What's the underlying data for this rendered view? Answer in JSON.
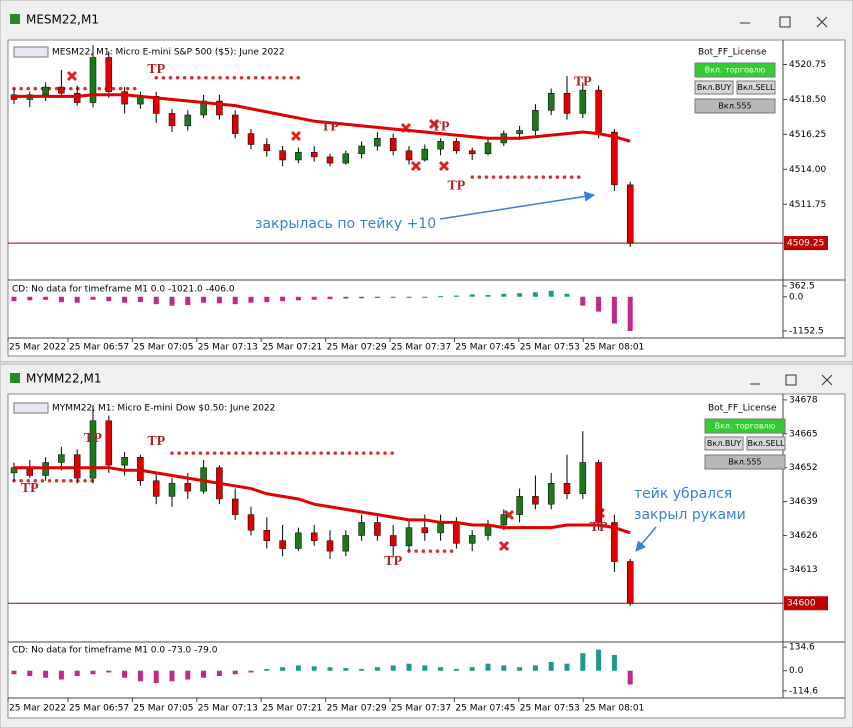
{
  "windows": [
    {
      "title": "MESM22,M1",
      "header": "MESM22, M1:  Micro E-mini S&P 500 ($5): June 2022",
      "license": "Bot_FF_License",
      "buttons": [
        "Вкл. торговлю",
        "Вкл.BUY",
        "Вкл.SELL",
        "Вкл.555"
      ],
      "annotation": [
        "закрылась по тейку +10"
      ]
    },
    {
      "title": "MYMM22,M1",
      "header": "MYMM22, M1:  Micro E-mini Dow $0.50: June 2022",
      "license": "Bot_FF_License",
      "buttons": [
        "Вкл. торговлю",
        "Вкл.BUY",
        "Вкл.SELL",
        "Вкл.555"
      ],
      "annotation": [
        "тейк убрался",
        "закрыл руками"
      ]
    }
  ],
  "chart_data": [
    {
      "type": "candlestick",
      "up_color": "#1a7a1a",
      "down_color": "#e00000",
      "ma_color": "#e00000",
      "level_color": "#d83030",
      "ylim": [
        4507.0,
        4522.2
      ],
      "yticks": [
        4520.75,
        {
          "value": 4518.5,
          "label": "4518.50"
        },
        4516.25,
        {
          "value": 4514.0,
          "label": "4514.00"
        },
        4511.75
      ],
      "last_price": 4509.25,
      "candles": [
        [
          4518.8,
          4519.2,
          4518.2,
          4518.5
        ],
        [
          4518.5,
          4519.0,
          4518.0,
          4518.8
        ],
        [
          4518.8,
          4519.6,
          4518.4,
          4519.3
        ],
        [
          4519.3,
          4520.4,
          4518.6,
          4518.9
        ],
        [
          4518.9,
          4519.4,
          4518.1,
          4518.3
        ],
        [
          4518.3,
          4522.0,
          4518.0,
          4521.2
        ],
        [
          4521.2,
          4521.6,
          4518.6,
          4519.0
        ],
        [
          4519.0,
          4519.3,
          4517.6,
          4518.2
        ],
        [
          4518.2,
          4519.0,
          4517.9,
          4518.7
        ],
        [
          4518.7,
          4519.0,
          4517.0,
          4517.6
        ],
        [
          4517.6,
          4517.9,
          4516.4,
          4516.8
        ],
        [
          4516.8,
          4517.8,
          4516.5,
          4517.5
        ],
        [
          4517.5,
          4518.8,
          4517.3,
          4518.4
        ],
        [
          4518.4,
          4518.8,
          4517.2,
          4517.5
        ],
        [
          4517.5,
          4517.8,
          4516.0,
          4516.3
        ],
        [
          4516.3,
          4516.6,
          4515.3,
          4515.6
        ],
        [
          4515.6,
          4516.0,
          4514.8,
          4515.2
        ],
        [
          4515.2,
          4515.5,
          4514.2,
          4514.6
        ],
        [
          4514.6,
          4515.4,
          4514.4,
          4515.1
        ],
        [
          4515.1,
          4515.5,
          4514.5,
          4514.8
        ],
        [
          4514.8,
          4515.0,
          4514.2,
          4514.4
        ],
        [
          4514.4,
          4515.2,
          4514.3,
          4515.0
        ],
        [
          4515.0,
          4515.8,
          4514.7,
          4515.5
        ],
        [
          4515.5,
          4516.4,
          4515.2,
          4516.0
        ],
        [
          4516.0,
          4516.3,
          4514.9,
          4515.2
        ],
        [
          4515.2,
          4515.5,
          4514.3,
          4514.6
        ],
        [
          4514.6,
          4515.6,
          4514.5,
          4515.3
        ],
        [
          4515.3,
          4516.0,
          4514.9,
          4515.8
        ],
        [
          4515.8,
          4516.0,
          4515.0,
          4515.2
        ],
        [
          4515.2,
          4515.4,
          4514.6,
          4515.0
        ],
        [
          4515.0,
          4516.0,
          4514.9,
          4515.7
        ],
        [
          4515.7,
          4516.5,
          4515.5,
          4516.3
        ],
        [
          4516.3,
          4516.8,
          4515.9,
          4516.5
        ],
        [
          4516.5,
          4518.2,
          4516.2,
          4517.8
        ],
        [
          4517.8,
          4519.2,
          4517.5,
          4518.9
        ],
        [
          4518.9,
          4520.0,
          4517.2,
          4517.6
        ],
        [
          4517.6,
          4519.6,
          4517.3,
          4519.1
        ],
        [
          4519.1,
          4519.4,
          4516.0,
          4516.4
        ],
        [
          4516.4,
          4516.6,
          4512.6,
          4513.0
        ],
        [
          4513.0,
          4513.2,
          4509.0,
          4509.25
        ]
      ],
      "ma": [
        4518.7,
        4518.7,
        4518.7,
        4518.7,
        4518.7,
        4518.8,
        4518.8,
        4518.8,
        4518.7,
        4518.6,
        4518.5,
        4518.4,
        4518.3,
        4518.2,
        4518.1,
        4517.9,
        4517.7,
        4517.5,
        4517.3,
        4517.1,
        4517.0,
        4516.9,
        4516.8,
        4516.7,
        4516.6,
        4516.5,
        4516.4,
        4516.3,
        4516.2,
        4516.1,
        4516.0,
        4516.0,
        4516.0,
        4516.1,
        4516.2,
        4516.3,
        4516.4,
        4516.3,
        4516.1,
        4515.8
      ],
      "levels": [
        {
          "price": 4519.2,
          "from": 0,
          "to": 8
        },
        {
          "price": 4519.9,
          "from": 9,
          "to": 18
        },
        {
          "price": 4513.5,
          "from": 29,
          "to": 36
        }
      ],
      "markers": [
        {
          "text": "TP",
          "candle": 9,
          "price": 4520.4
        },
        {
          "text": "TP",
          "candle": 20,
          "price": 4516.7
        },
        {
          "text": "TP",
          "candle": 27,
          "price": 4516.7
        },
        {
          "text": "TP",
          "candle": 28,
          "price": 4512.9
        },
        {
          "text": "TP",
          "candle": 36,
          "price": 4519.6
        }
      ],
      "indicator": {
        "label": "CD: No data for timeframe M1 0.0 -1021.0 -406.0",
        "ylim": [
          -1388,
          497
        ],
        "yticks": [
          362.5,
          {
            "value": 0,
            "label": "0.0"
          },
          -1152.5
        ],
        "pos_color": "#1a9a8a",
        "neg_color": "#c0288a",
        "values": [
          -150,
          -120,
          -100,
          -180,
          -200,
          -100,
          -150,
          -200,
          -180,
          -250,
          -300,
          -280,
          -200,
          -220,
          -250,
          -200,
          -180,
          -150,
          -120,
          -100,
          -80,
          -60,
          -50,
          -40,
          -30,
          -20,
          -10,
          20,
          40,
          80,
          60,
          100,
          120,
          150,
          200,
          100,
          -300,
          -500,
          -900,
          -1152.5
        ]
      },
      "time_labels": [
        "25 Mar 2022",
        "25 Mar 06:57",
        "25 Mar 07:05",
        "25 Mar 07:13",
        "25 Mar 07:21",
        "25 Mar 07:29",
        "25 Mar 07:37",
        "25 Mar 07:45",
        "25 Mar 07:53",
        "25 Mar 08:01"
      ]
    },
    {
      "type": "candlestick",
      "up_color": "#1a7a1a",
      "down_color": "#e00000",
      "ma_color": "#e00000",
      "level_color": "#d83030",
      "ylim": [
        34585.9,
        34679.5
      ],
      "yticks": [
        34678,
        34665,
        34652,
        34639,
        34626,
        34613
      ],
      "last_price": 34600,
      "candles": [
        [
          34650,
          34654,
          34647,
          34652
        ],
        [
          34652,
          34655,
          34648,
          34649
        ],
        [
          34649,
          34656,
          34647,
          34654
        ],
        [
          34654,
          34660,
          34651,
          34657
        ],
        [
          34657,
          34659,
          34646,
          34648
        ],
        [
          34648,
          34676,
          34646,
          34670
        ],
        [
          34670,
          34672,
          34650,
          34653
        ],
        [
          34653,
          34658,
          34649,
          34656
        ],
        [
          34656,
          34657,
          34645,
          34647
        ],
        [
          34647,
          34650,
          34638,
          34641
        ],
        [
          34641,
          34648,
          34637,
          34646
        ],
        [
          34646,
          34650,
          34640,
          34643
        ],
        [
          34643,
          34655,
          34642,
          34652
        ],
        [
          34652,
          34653,
          34638,
          34640
        ],
        [
          34640,
          34644,
          34632,
          34634
        ],
        [
          34634,
          34637,
          34626,
          34628
        ],
        [
          34628,
          34633,
          34621,
          34624
        ],
        [
          34624,
          34630,
          34618,
          34621
        ],
        [
          34621,
          34629,
          34620,
          34627
        ],
        [
          34627,
          34630,
          34622,
          34624
        ],
        [
          34624,
          34628,
          34617,
          34620
        ],
        [
          34620,
          34628,
          34618,
          34626
        ],
        [
          34626,
          34634,
          34624,
          34631
        ],
        [
          34631,
          34634,
          34624,
          34626
        ],
        [
          34626,
          34630,
          34618,
          34622
        ],
        [
          34622,
          34632,
          34620,
          34629
        ],
        [
          34629,
          34634,
          34624,
          34627
        ],
        [
          34627,
          34634,
          34624,
          34631
        ],
        [
          34631,
          34633,
          34621,
          34623
        ],
        [
          34623,
          34628,
          34620,
          34626
        ],
        [
          34626,
          34632,
          34624,
          34630
        ],
        [
          34630,
          34636,
          34628,
          34634
        ],
        [
          34634,
          34644,
          34631,
          34641
        ],
        [
          34641,
          34649,
          34636,
          34638
        ],
        [
          34638,
          34650,
          34636,
          34646
        ],
        [
          34646,
          34657,
          34640,
          34642
        ],
        [
          34642,
          34666,
          34640,
          34654
        ],
        [
          34654,
          34655,
          34628,
          34631
        ],
        [
          34631,
          34634,
          34612,
          34616
        ],
        [
          34616,
          34617,
          34599,
          34600
        ]
      ],
      "ma": [
        34652,
        34652,
        34652,
        34652,
        34652,
        34652,
        34652,
        34651,
        34651,
        34650,
        34649,
        34648,
        34647,
        34646,
        34645,
        34644,
        34642,
        34641,
        34640,
        34638,
        34637,
        34636,
        34635,
        34634,
        34633,
        34632,
        34632,
        34631,
        34631,
        34630,
        34630,
        34629,
        34629,
        34629,
        34629,
        34630,
        34630,
        34630,
        34629,
        34627
      ],
      "levels": [
        {
          "price": 34647,
          "from": 0,
          "to": 5
        },
        {
          "price": 34657.6,
          "from": 10,
          "to": 24
        },
        {
          "price": 34620,
          "from": 25,
          "to": 28
        }
      ],
      "markers": [
        {
          "text": "TP",
          "candle": 5,
          "price": 34663
        },
        {
          "text": "TP",
          "candle": 9,
          "price": 34662
        },
        {
          "text": "TP",
          "candle": 1,
          "price": 34644
        },
        {
          "text": "TP",
          "candle": 24,
          "price": 34616
        },
        {
          "text": "TP",
          "candle": 37,
          "price": 34629
        }
      ],
      "indicator": {
        "label": "CD: No data for timeframe M1 0.0 -73.0 -79.0",
        "ylim": [
          -155.5,
          158
        ],
        "yticks": [
          134.6,
          {
            "value": 0,
            "label": "0.0"
          },
          -114.6
        ],
        "pos_color": "#1a9a8a",
        "neg_color": "#c0288a",
        "values": [
          -20,
          -30,
          -40,
          -50,
          -30,
          -20,
          -10,
          -40,
          -60,
          -70,
          -60,
          -50,
          -40,
          -30,
          -20,
          -10,
          10,
          20,
          30,
          25,
          20,
          15,
          10,
          20,
          30,
          40,
          30,
          20,
          10,
          20,
          40,
          30,
          20,
          30,
          50,
          40,
          100,
          120,
          90,
          -79
        ]
      },
      "time_labels": [
        "25 Mar 2022",
        "25 Mar 06:57",
        "25 Mar 07:05",
        "25 Mar 07:13",
        "25 Mar 07:21",
        "25 Mar 07:29",
        "25 Mar 07:37",
        "25 Mar 07:45",
        "25 Mar 07:53",
        "25 Mar 08:01"
      ]
    }
  ]
}
